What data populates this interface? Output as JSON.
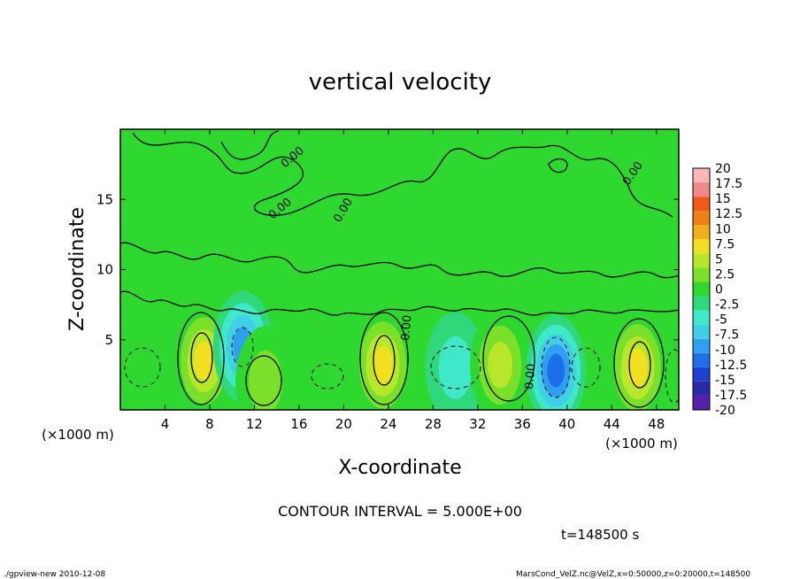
{
  "chart_data": {
    "type": "heatmap",
    "title": "vertical velocity",
    "xlabel": "X-coordinate",
    "ylabel": "Z-coordinate",
    "x_unit": "(×1000 m)",
    "y_unit": "(×1000 m)",
    "xlim": [
      0,
      50
    ],
    "ylim": [
      0,
      20
    ],
    "x_ticks": [
      4,
      8,
      12,
      16,
      20,
      24,
      28,
      32,
      36,
      40,
      44,
      48
    ],
    "y_ticks": [
      5,
      10,
      15
    ],
    "contour_labels": [
      "0.00",
      "0.00",
      "0.00",
      "0.00",
      "0.00",
      "0.00"
    ],
    "contour_interval_text": "CONTOUR INTERVAL = 5.000E+00",
    "time_text": "t=148500 s",
    "colorbar": {
      "levels": [
        -20,
        -17.5,
        -15,
        -12.5,
        -10,
        -7.5,
        -5,
        -2.5,
        0,
        2.5,
        5,
        7.5,
        10,
        12.5,
        15,
        17.5,
        20
      ],
      "labels": [
        "-20",
        "-17.5",
        "-15",
        "-12.5",
        "-10",
        "-7.5",
        "-5",
        "-2.5",
        "0",
        "2.5",
        "5",
        "7.5",
        "10",
        "12.5",
        "15",
        "17.5",
        "20"
      ],
      "colors": [
        "#5a1fa8",
        "#2a2aa8",
        "#1f3fd0",
        "#1f6fe8",
        "#2fa0f0",
        "#3fd0e8",
        "#3fe8c8",
        "#2fd87a",
        "#2ed82e",
        "#7ae02a",
        "#b8e62a",
        "#f0e020",
        "#f0b01a",
        "#f08018",
        "#f05a14",
        "#f08a8a",
        "#f8b8b8"
      ]
    },
    "cells": [
      {
        "x": 7.5,
        "z": 3.5,
        "w": 8.2,
        "label": "updraft"
      },
      {
        "x": 11.0,
        "z": 4.5,
        "w": -9.0,
        "label": "downdraft"
      },
      {
        "x": 13.0,
        "z": 2.0,
        "w": 4.5,
        "label": "updraft"
      },
      {
        "x": 23.5,
        "z": 3.2,
        "w": 9.5,
        "label": "updraft"
      },
      {
        "x": 30.0,
        "z": 3.0,
        "w": -4.0,
        "label": "downdraft"
      },
      {
        "x": 34.0,
        "z": 3.2,
        "w": 6.5,
        "label": "updraft"
      },
      {
        "x": 39.0,
        "z": 2.8,
        "w": -11.0,
        "label": "downdraft"
      },
      {
        "x": 46.3,
        "z": 3.0,
        "w": 9.5,
        "label": "updraft"
      }
    ]
  },
  "footer": {
    "left": "./gpview-new   2010-12-08",
    "right": "MarsCond_VelZ.nc@VelZ,x=0:50000,z=0:20000,t=148500"
  }
}
